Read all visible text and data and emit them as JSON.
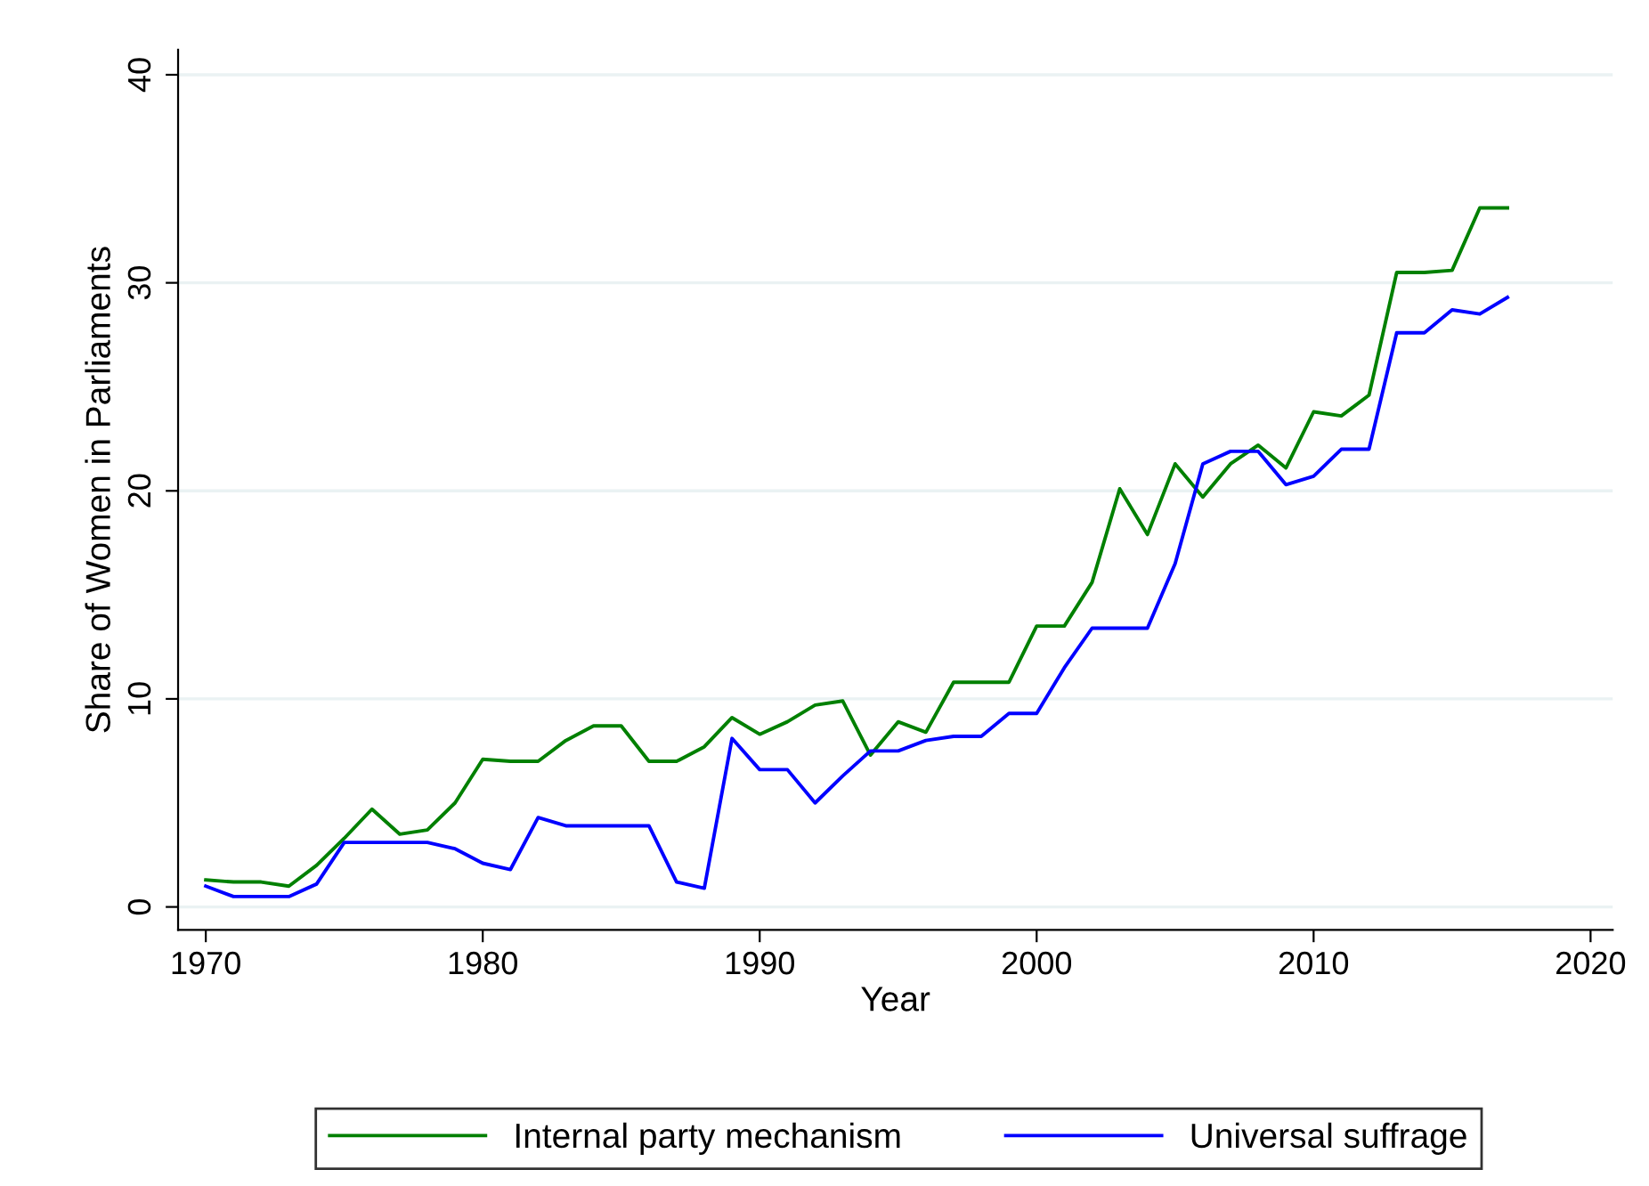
{
  "chart_data": {
    "type": "line",
    "xlabel": "Year",
    "ylabel": "Share of Women in Parliaments",
    "x": [
      1970,
      1971,
      1972,
      1973,
      1974,
      1975,
      1976,
      1977,
      1978,
      1979,
      1980,
      1981,
      1982,
      1983,
      1984,
      1985,
      1986,
      1987,
      1988,
      1989,
      1990,
      1991,
      1992,
      1993,
      1994,
      1995,
      1996,
      1997,
      1998,
      1999,
      2000,
      2001,
      2002,
      2003,
      2004,
      2005,
      2006,
      2007,
      2008,
      2009,
      2010,
      2011,
      2012,
      2013,
      2014,
      2015,
      2016,
      2017
    ],
    "series": [
      {
        "name": "Internal party mechanism",
        "color": "#008000",
        "values": [
          1.3,
          1.2,
          1.2,
          1.0,
          2.0,
          3.3,
          4.7,
          3.5,
          3.7,
          5.0,
          7.1,
          7.0,
          7.0,
          8.0,
          8.7,
          8.7,
          7.0,
          7.0,
          7.7,
          9.1,
          8.3,
          8.9,
          9.7,
          9.9,
          7.3,
          8.9,
          8.4,
          10.8,
          10.8,
          10.8,
          13.5,
          13.5,
          15.6,
          20.1,
          17.9,
          21.3,
          19.7,
          21.3,
          22.2,
          21.1,
          23.8,
          23.6,
          24.6,
          30.5,
          30.5,
          30.6,
          33.6,
          33.6
        ]
      },
      {
        "name": "Universal suffrage",
        "color": "#0000ff",
        "values": [
          1.0,
          0.5,
          0.5,
          0.5,
          1.1,
          3.1,
          3.1,
          3.1,
          3.1,
          2.8,
          2.1,
          1.8,
          4.3,
          3.9,
          3.9,
          3.9,
          3.9,
          1.2,
          0.9,
          8.1,
          6.6,
          6.6,
          5.0,
          6.3,
          7.5,
          7.5,
          8.0,
          8.2,
          8.2,
          9.3,
          9.3,
          11.5,
          13.4,
          13.4,
          13.4,
          16.5,
          21.3,
          21.9,
          21.9,
          20.3,
          20.7,
          22.0,
          22.0,
          27.6,
          27.6,
          28.7,
          28.5,
          29.3
        ]
      }
    ],
    "xlim": [
      1969.0,
      2020.8
    ],
    "xticks": [
      1970,
      1980,
      1990,
      2000,
      2010,
      2020
    ],
    "ylim": [
      -1.1,
      41.2
    ],
    "yticks": [
      0,
      10,
      20,
      30,
      40
    ],
    "grid": "y",
    "legend": "bottom",
    "line_style": "solid",
    "marker": "none"
  }
}
